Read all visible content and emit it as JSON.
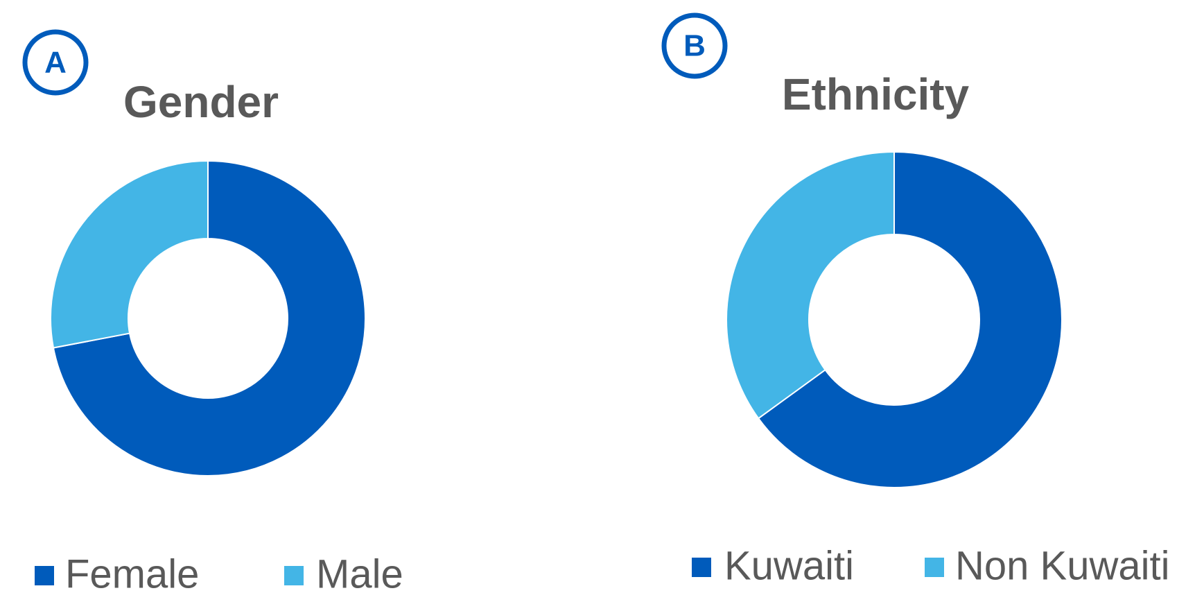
{
  "chart_data": [
    {
      "type": "donut",
      "label": "A",
      "title": "Gender",
      "categories": [
        "Female",
        "Male"
      ],
      "values": [
        72,
        28
      ],
      "colors": [
        "#005bbb",
        "#43b5e6"
      ]
    },
    {
      "type": "donut",
      "label": "B",
      "title": "Ethnicity",
      "categories": [
        "Kuwaiti",
        "Non Kuwaiti"
      ],
      "values": [
        65,
        35
      ],
      "colors": [
        "#005bbb",
        "#43b5e6"
      ]
    }
  ]
}
